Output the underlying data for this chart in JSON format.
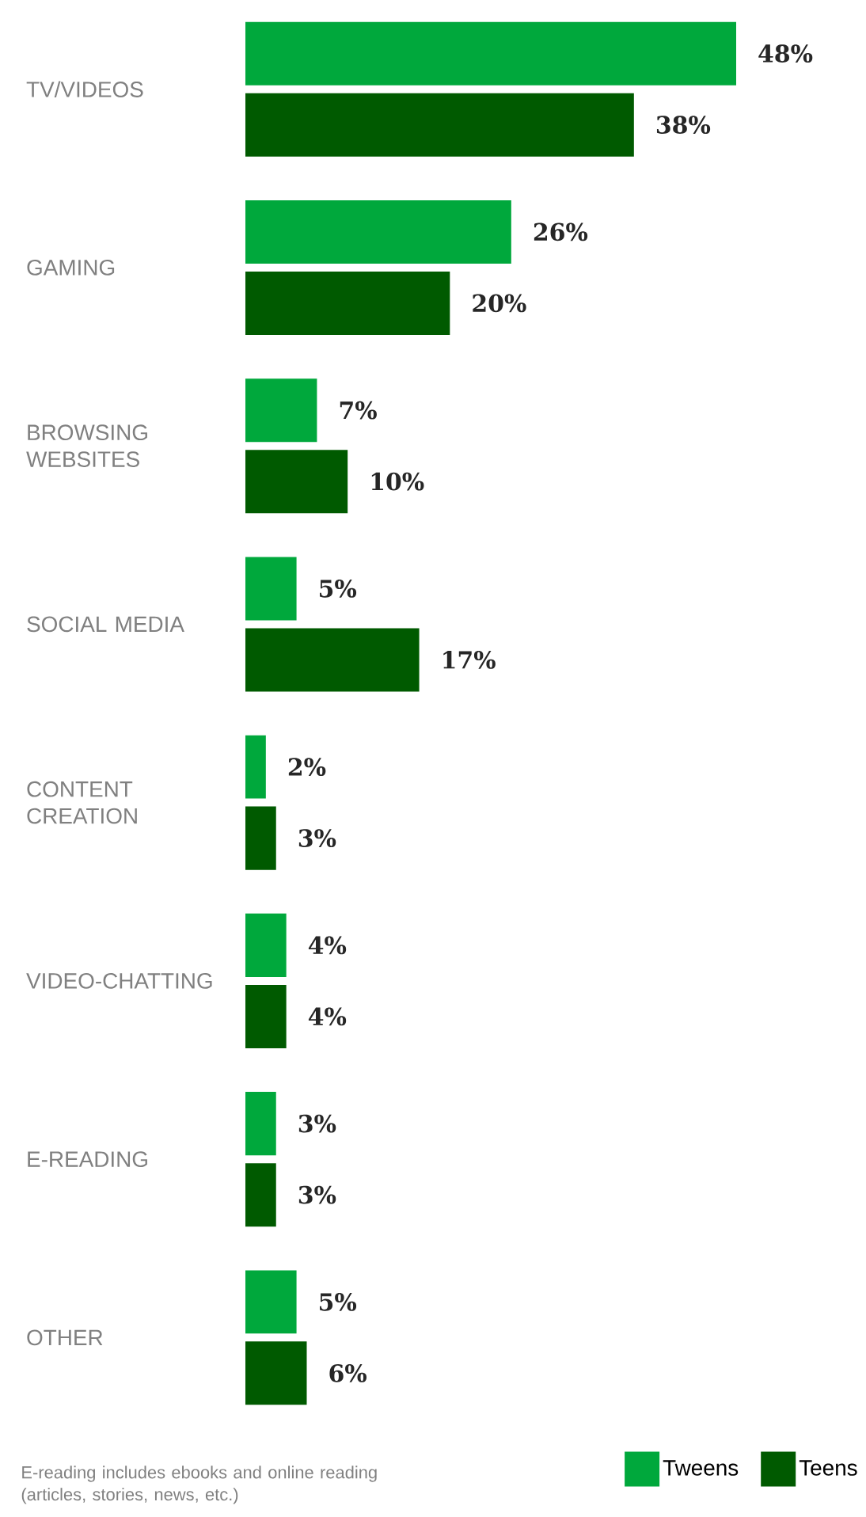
{
  "chart_data": {
    "type": "bar",
    "orientation": "horizontal",
    "categories": [
      "TV/VIDEOS",
      "GAMING",
      "BROWSING WEBSITES",
      "SOCIAL MEDIA",
      "CONTENT CREATION",
      "VIDEO-CHATTING",
      "E-READING",
      "OTHER"
    ],
    "series": [
      {
        "name": "Tweens",
        "color": "#00a83c",
        "values": [
          48,
          26,
          7,
          5,
          2,
          4,
          3,
          5
        ],
        "value_labels": [
          "48%",
          "26%",
          "7%",
          "5%",
          "2%",
          "4%",
          "3%",
          "5%"
        ]
      },
      {
        "name": "Teens",
        "color": "#005a00",
        "values": [
          38,
          20,
          10,
          17,
          3,
          4,
          3,
          6
        ],
        "value_labels": [
          "38%",
          "20%",
          "10%",
          "17%",
          "3%",
          "4%",
          "3%",
          "6%"
        ]
      }
    ],
    "tick_labels": "y",
    "legend": "bottom right",
    "annotations": [
      "E-reading includes ebooks and online reading (articles, stories, news, etc.)"
    ]
  }
}
